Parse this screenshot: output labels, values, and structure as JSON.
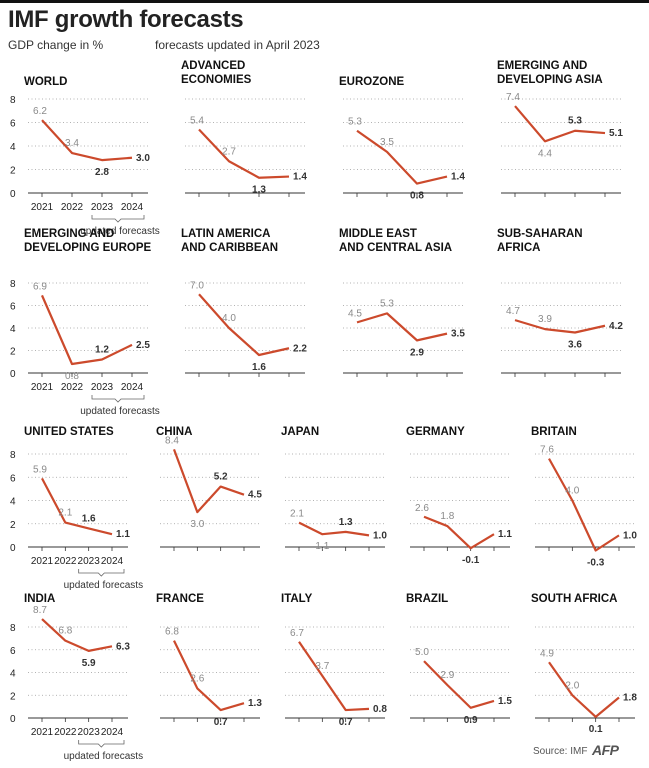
{
  "header": {
    "title": "IMF growth forecasts",
    "unit": "GDP change in %",
    "note": "forecasts updated in April 2023"
  },
  "footer": {
    "source": "Source: IMF",
    "logo_text": "AFP"
  },
  "style": {
    "line_color": "#cc4a2c",
    "actual_label_color": "#8a8a8a",
    "forecast_label_color": "#333333"
  },
  "chart_data": [
    {
      "type": "line",
      "title": [
        "WORLD"
      ],
      "x": [
        "2021",
        "2022",
        "2023",
        "2024"
      ],
      "values": [
        6.2,
        3.4,
        2.8,
        3.0
      ],
      "forecast_from": 2,
      "ylim": [
        0,
        8
      ],
      "yticks": [
        0,
        2,
        4,
        6,
        8
      ],
      "show_x_labels": true,
      "forecast_note": "updated forecasts"
    },
    {
      "type": "line",
      "title": [
        "ADVANCED",
        "ECONOMIES"
      ],
      "x": [
        "2021",
        "2022",
        "2023",
        "2024"
      ],
      "values": [
        5.4,
        2.7,
        1.3,
        1.4
      ],
      "forecast_from": 2,
      "ylim": [
        0,
        8
      ]
    },
    {
      "type": "line",
      "title": [
        "EUROZONE"
      ],
      "x": [
        "2021",
        "2022",
        "2023",
        "2024"
      ],
      "values": [
        5.3,
        3.5,
        0.8,
        1.4
      ],
      "forecast_from": 2,
      "ylim": [
        0,
        8
      ]
    },
    {
      "type": "line",
      "title": [
        "EMERGING AND",
        "DEVELOPING ASIA"
      ],
      "x": [
        "2021",
        "2022",
        "2023",
        "2024"
      ],
      "values": [
        7.4,
        4.4,
        5.3,
        5.1
      ],
      "forecast_from": 2,
      "ylim": [
        0,
        8
      ]
    },
    {
      "type": "line",
      "title": [
        "EMERGING AND",
        "DEVELOPING EUROPE"
      ],
      "x": [
        "2021",
        "2022",
        "2023",
        "2024"
      ],
      "values": [
        6.9,
        0.8,
        1.2,
        2.5
      ],
      "forecast_from": 2,
      "ylim": [
        0,
        8
      ],
      "yticks": [
        0,
        2,
        4,
        6,
        8
      ],
      "show_x_labels": true,
      "forecast_note": "updated forecasts"
    },
    {
      "type": "line",
      "title": [
        "LATIN AMERICA",
        "AND CARIBBEAN"
      ],
      "x": [
        "2021",
        "2022",
        "2023",
        "2024"
      ],
      "values": [
        7.0,
        4.0,
        1.6,
        2.2
      ],
      "forecast_from": 2,
      "ylim": [
        0,
        8
      ]
    },
    {
      "type": "line",
      "title": [
        "MIDDLE EAST",
        "AND CENTRAL ASIA"
      ],
      "x": [
        "2021",
        "2022",
        "2023",
        "2024"
      ],
      "values": [
        4.5,
        5.3,
        2.9,
        3.5
      ],
      "forecast_from": 2,
      "ylim": [
        0,
        8
      ]
    },
    {
      "type": "line",
      "title": [
        "SUB-SAHARAN",
        "AFRICA"
      ],
      "x": [
        "2021",
        "2022",
        "2023",
        "2024"
      ],
      "values": [
        4.7,
        3.9,
        3.6,
        4.2
      ],
      "forecast_from": 2,
      "ylim": [
        0,
        8
      ]
    },
    {
      "type": "line",
      "title": [
        "UNITED STATES"
      ],
      "x": [
        "2021",
        "2022",
        "2023",
        "2024"
      ],
      "values": [
        5.9,
        2.1,
        1.6,
        1.1
      ],
      "forecast_from": 2,
      "ylim": [
        0,
        8
      ],
      "yticks": [
        0,
        2,
        4,
        6,
        8
      ],
      "show_x_labels": true,
      "forecast_note": "updated forecasts"
    },
    {
      "type": "line",
      "title": [
        "CHINA"
      ],
      "x": [
        "2021",
        "2022",
        "2023",
        "2024"
      ],
      "values": [
        8.4,
        3.0,
        5.2,
        4.5
      ],
      "forecast_from": 2,
      "ylim": [
        0,
        8
      ]
    },
    {
      "type": "line",
      "title": [
        "JAPAN"
      ],
      "x": [
        "2021",
        "2022",
        "2023",
        "2024"
      ],
      "values": [
        2.1,
        1.1,
        1.3,
        1.0
      ],
      "forecast_from": 2,
      "ylim": [
        0,
        8
      ]
    },
    {
      "type": "line",
      "title": [
        "GERMANY"
      ],
      "x": [
        "2021",
        "2022",
        "2023",
        "2024"
      ],
      "values": [
        2.6,
        1.8,
        -0.1,
        1.1
      ],
      "forecast_from": 2,
      "ylim": [
        0,
        8
      ]
    },
    {
      "type": "line",
      "title": [
        "BRITAIN"
      ],
      "x": [
        "2021",
        "2022",
        "2023",
        "2024"
      ],
      "values": [
        7.6,
        4.0,
        -0.3,
        1.0
      ],
      "forecast_from": 2,
      "ylim": [
        0,
        8
      ]
    },
    {
      "type": "line",
      "title": [
        "INDIA"
      ],
      "x": [
        "2021",
        "2022",
        "2023",
        "2024"
      ],
      "values": [
        8.7,
        6.8,
        5.9,
        6.3
      ],
      "forecast_from": 2,
      "ylim": [
        0,
        8
      ],
      "yticks": [
        0,
        2,
        4,
        6,
        8
      ],
      "show_x_labels": true,
      "forecast_note": "updated forecasts"
    },
    {
      "type": "line",
      "title": [
        "FRANCE"
      ],
      "x": [
        "2021",
        "2022",
        "2023",
        "2024"
      ],
      "values": [
        6.8,
        2.6,
        0.7,
        1.3
      ],
      "forecast_from": 2,
      "ylim": [
        0,
        8
      ]
    },
    {
      "type": "line",
      "title": [
        "ITALY"
      ],
      "x": [
        "2021",
        "2022",
        "2023",
        "2024"
      ],
      "values": [
        6.7,
        3.7,
        0.7,
        0.8
      ],
      "forecast_from": 2,
      "ylim": [
        0,
        8
      ]
    },
    {
      "type": "line",
      "title": [
        "BRAZIL"
      ],
      "x": [
        "2021",
        "2022",
        "2023",
        "2024"
      ],
      "values": [
        5.0,
        2.9,
        0.9,
        1.5
      ],
      "forecast_from": 2,
      "ylim": [
        0,
        8
      ]
    },
    {
      "type": "line",
      "title": [
        "SOUTH AFRICA"
      ],
      "x": [
        "2021",
        "2022",
        "2023",
        "2024"
      ],
      "values": [
        4.9,
        2.0,
        0.1,
        1.8
      ],
      "forecast_from": 2,
      "ylim": [
        0,
        8
      ]
    }
  ]
}
